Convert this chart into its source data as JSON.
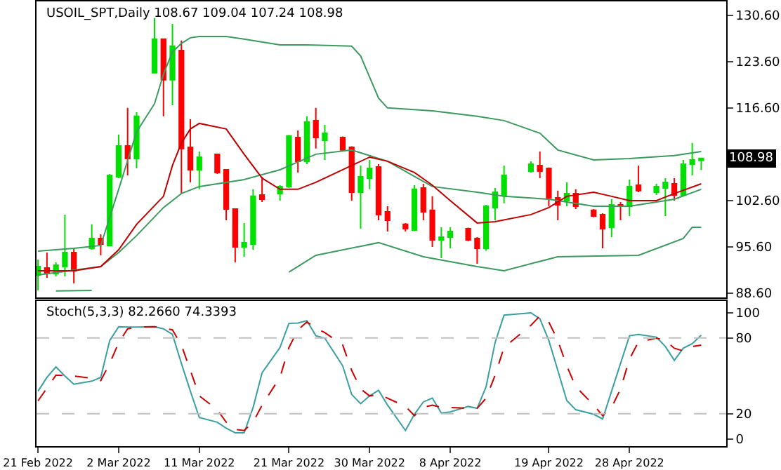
{
  "chart_data": [
    {
      "type": "candlestick",
      "title": "USOIL_SPT,Daily 108.67 109.04 107.24 108.98",
      "x": [
        "2022-02-21",
        "2022-02-22",
        "2022-02-23",
        "2022-02-24",
        "2022-02-25",
        "2022-02-27",
        "2022-02-28",
        "2022-03-01",
        "2022-03-02",
        "2022-03-03",
        "2022-03-04",
        "2022-03-06",
        "2022-03-07",
        "2022-03-08",
        "2022-03-09",
        "2022-03-10",
        "2022-03-11",
        "2022-03-13",
        "2022-03-14",
        "2022-03-15",
        "2022-03-16",
        "2022-03-17",
        "2022-03-18",
        "2022-03-20",
        "2022-03-21",
        "2022-03-22",
        "2022-03-23",
        "2022-03-24",
        "2022-03-25",
        "2022-03-27",
        "2022-03-28",
        "2022-03-29",
        "2022-03-30",
        "2022-03-31",
        "2022-04-01",
        "2022-04-03",
        "2022-04-04",
        "2022-04-05",
        "2022-04-06",
        "2022-04-07",
        "2022-04-08",
        "2022-04-10",
        "2022-04-11",
        "2022-04-12",
        "2022-04-13",
        "2022-04-14",
        "2022-04-17",
        "2022-04-18",
        "2022-04-19",
        "2022-04-20",
        "2022-04-21",
        "2022-04-22",
        "2022-04-24",
        "2022-04-25",
        "2022-04-26",
        "2022-04-27",
        "2022-04-28",
        "2022-04-29",
        "2022-05-01",
        "2022-05-02",
        "2022-05-03",
        "2022-05-04",
        "2022-05-05",
        "2022-05-06"
      ],
      "ohlc": [
        [
          91.36,
          93.69,
          89.02,
          92.63
        ],
        [
          92.42,
          94.75,
          90.93,
          91.57
        ],
        [
          91.57,
          93.27,
          91.15,
          92.84
        ],
        [
          92.63,
          100.48,
          91.15,
          94.75
        ],
        [
          94.75,
          95.39,
          90.08,
          92.0
        ],
        [
          95.39,
          99.0,
          95.17,
          96.87
        ],
        [
          96.87,
          97.51,
          94.33,
          96.02
        ],
        [
          95.81,
          106.63,
          95.81,
          106.42
        ],
        [
          106.2,
          112.57,
          105.99,
          110.87
        ],
        [
          110.87,
          116.6,
          106.42,
          108.96
        ],
        [
          108.96,
          115.96,
          107.48,
          115.33
        ],
        [
          121.9,
          130.17,
          121.9,
          126.99
        ],
        [
          126.99,
          126.99,
          115.33,
          120.84
        ],
        [
          120.84,
          129.32,
          117.02,
          125.93
        ],
        [
          125.29,
          126.78,
          103.66,
          110.45
        ],
        [
          110.66,
          114.9,
          105.36,
          107.26
        ],
        [
          107.26,
          110.02,
          104.3,
          109.17
        ],
        [
          109.6,
          109.6,
          106.63,
          106.84
        ],
        [
          107.26,
          107.26,
          99.63,
          101.33
        ],
        [
          101.33,
          101.33,
          93.27,
          95.6
        ],
        [
          95.6,
          99.21,
          94.11,
          96.24
        ],
        [
          96.02,
          104.3,
          95.17,
          103.24
        ],
        [
          103.45,
          106.2,
          102.39,
          102.81
        ],
        [
          103.66,
          104.93,
          102.6,
          104.72
        ],
        [
          104.72,
          112.5,
          104.5,
          112.36
        ],
        [
          112.14,
          113.2,
          106.84,
          108.54
        ],
        [
          108.54,
          115.33,
          108.11,
          114.48
        ],
        [
          114.69,
          116.6,
          110.45,
          112.14
        ],
        [
          111.72,
          114.05,
          108.75,
          112.78
        ],
        [
          112.14,
          112.3,
          110.02,
          110.24
        ],
        [
          110.66,
          110.8,
          102.6,
          103.87
        ],
        [
          103.87,
          107.9,
          98.36,
          106.2
        ],
        [
          105.99,
          108.75,
          104.3,
          107.48
        ],
        [
          107.69,
          108.11,
          99.63,
          100.48
        ],
        [
          100.9,
          101.75,
          97.93,
          99.63
        ],
        [
          99.0,
          99.21,
          97.93,
          98.36
        ],
        [
          98.15,
          104.93,
          98.0,
          104.3
        ],
        [
          104.51,
          105.14,
          99.63,
          100.9
        ],
        [
          101.12,
          103.24,
          95.6,
          96.66
        ],
        [
          96.66,
          98.57,
          93.9,
          97.09
        ],
        [
          97.09,
          98.57,
          95.39,
          97.93
        ],
        [
          98.36,
          98.5,
          96.45,
          96.66
        ],
        [
          96.87,
          97.09,
          93.05,
          95.39
        ],
        [
          95.39,
          101.96,
          95.0,
          101.75
        ],
        [
          101.54,
          104.51,
          99.63,
          103.87
        ],
        [
          103.45,
          107.9,
          102.18,
          106.42
        ],
        [
          107.05,
          108.54,
          106.84,
          108.11
        ],
        [
          107.9,
          110.02,
          105.99,
          107.05
        ],
        [
          107.48,
          107.6,
          101.75,
          103.02
        ],
        [
          103.02,
          104.09,
          99.63,
          101.96
        ],
        [
          102.6,
          105.36,
          101.75,
          103.66
        ],
        [
          103.66,
          104.3,
          101.33,
          101.75
        ],
        [
          101.12,
          101.33,
          100.06,
          100.27
        ],
        [
          100.48,
          100.69,
          95.39,
          98.36
        ],
        [
          98.57,
          102.81,
          97.09,
          101.96
        ],
        [
          101.96,
          102.39,
          99.63,
          101.75
        ],
        [
          101.75,
          105.78,
          100.27,
          104.72
        ],
        [
          104.93,
          107.9,
          103.87,
          104.09
        ],
        [
          103.87,
          105.14,
          103.45,
          104.72
        ],
        [
          104.51,
          105.99,
          100.27,
          105.36
        ],
        [
          105.14,
          105.99,
          102.6,
          103.45
        ],
        [
          103.45,
          108.75,
          103.24,
          108.11
        ],
        [
          108.11,
          111.3,
          106.42,
          108.75
        ],
        [
          108.67,
          109.04,
          107.24,
          108.98
        ]
      ],
      "colors": [
        "#00e000",
        "#ff0000",
        "#00e000",
        "#00e000",
        "#ff0000",
        "#00e000",
        "#ff0000",
        "#00e000",
        "#00e000",
        "#ff0000",
        "#00e000",
        "#00e000",
        "#ff0000",
        "#00e000",
        "#ff0000",
        "#ff0000",
        "#00e000",
        "#ff0000",
        "#ff0000",
        "#ff0000",
        "#00e000",
        "#00e000",
        "#ff0000",
        "#00e000",
        "#00e000",
        "#ff0000",
        "#00e000",
        "#ff0000",
        "#00e000",
        "#ff0000",
        "#ff0000",
        "#00e000",
        "#00e000",
        "#ff0000",
        "#ff0000",
        "#ff0000",
        "#00e000",
        "#ff0000",
        "#ff0000",
        "#00e000",
        "#00e000",
        "#ff0000",
        "#ff0000",
        "#00e000",
        "#00e000",
        "#00e000",
        "#00e000",
        "#ff0000",
        "#ff0000",
        "#ff0000",
        "#00e000",
        "#ff0000",
        "#ff0000",
        "#ff0000",
        "#00e000",
        "#ff0000",
        "#00e000",
        "#ff0000",
        "#00e000",
        "#00e000",
        "#ff0000",
        "#00e000",
        "#00e000",
        "#00e000"
      ],
      "series": [
        {
          "type": "line",
          "color": "#3c9a5f",
          "x": [
            "2022-02-21",
            "2022-02-25",
            "2022-02-28",
            "2022-03-02",
            "2022-03-04",
            "2022-03-06",
            "2022-03-07",
            "2022-03-08",
            "2022-03-09",
            "2022-03-10",
            "2022-03-11",
            "2022-03-14",
            "2022-03-16",
            "2022-03-20",
            "2022-03-23",
            "2022-03-28",
            "2022-03-29",
            "2022-03-30",
            "2022-03-31",
            "2022-04-01",
            "2022-04-06",
            "2022-04-11",
            "2022-04-14",
            "2022-04-18",
            "2022-04-20",
            "2022-04-24",
            "2022-04-28",
            "2022-05-03",
            "2022-05-06"
          ],
          "values": [
            94.96,
            95.39,
            95.81,
            104.3,
            112.99,
            117.23,
            121.69,
            125.08,
            126.35,
            127.2,
            127.41,
            127.41,
            126.99,
            126.14,
            126.14,
            125.93,
            124.45,
            121.26,
            118.08,
            116.6,
            116.17,
            115.33,
            114.69,
            112.78,
            110.24,
            108.75,
            108.96,
            109.39,
            110.02
          ]
        },
        {
          "type": "line",
          "color": "#3c9a5f",
          "x": [
            "2022-02-21",
            "2022-02-28",
            "2022-03-02",
            "2022-03-04",
            "2022-03-07",
            "2022-03-09",
            "2022-03-11",
            "2022-03-16",
            "2022-03-20",
            "2022-03-24",
            "2022-03-28",
            "2022-04-01",
            "2022-04-06",
            "2022-04-11",
            "2022-04-14",
            "2022-04-19",
            "2022-04-24",
            "2022-04-28",
            "2022-05-03",
            "2022-05-06"
          ],
          "values": [
            91.36,
            92.63,
            94.75,
            97.3,
            101.54,
            103.66,
            104.72,
            105.78,
            107.26,
            109.6,
            110.24,
            108.54,
            104.72,
            103.87,
            103.24,
            102.81,
            101.75,
            101.75,
            102.81,
            104.3
          ]
        },
        {
          "type": "line",
          "color": "#3c9a5f",
          "x": [
            "2022-02-23",
            "2022-02-27",
            "2022-02-28",
            "2022-03-21",
            "2022-03-24",
            "2022-03-31",
            "2022-04-05",
            "2022-04-11",
            "2022-04-14",
            "2022-04-20",
            "2022-04-29",
            "2022-05-04",
            "2022-05-05",
            "2022-05-06"
          ],
          "values": [
            88.93,
            89.02,
            null,
            91.78,
            94.33,
            96.24,
            94.11,
            92.63,
            92.0,
            94.11,
            94.33,
            96.87,
            98.57,
            98.57
          ]
        },
        {
          "type": "line",
          "color": "#c00000",
          "x": [
            "2022-02-21",
            "2022-02-25",
            "2022-02-28",
            "2022-03-02",
            "2022-03-04",
            "2022-03-07",
            "2022-03-08",
            "2022-03-09",
            "2022-03-10",
            "2022-03-11",
            "2022-03-14",
            "2022-03-16",
            "2022-03-18",
            "2022-03-20",
            "2022-03-22",
            "2022-03-24",
            "2022-03-28",
            "2022-03-30",
            "2022-04-01",
            "2022-04-04",
            "2022-04-06",
            "2022-04-08",
            "2022-04-11",
            "2022-04-13",
            "2022-04-17",
            "2022-04-19",
            "2022-04-21",
            "2022-04-24",
            "2022-04-26",
            "2022-04-28",
            "2022-05-01",
            "2022-05-03",
            "2022-05-06"
          ],
          "values": [
            92.0,
            92.0,
            92.63,
            95.17,
            99.0,
            103.24,
            107.9,
            111.3,
            113.42,
            114.26,
            113.42,
            109.6,
            105.99,
            104.3,
            104.3,
            105.36,
            107.9,
            109.17,
            108.54,
            106.84,
            104.93,
            102.6,
            99.21,
            99.42,
            100.48,
            101.54,
            103.24,
            103.87,
            103.24,
            102.6,
            102.6,
            103.66,
            105.14
          ]
        }
      ],
      "xlim": [
        "2022-02-20T20:00",
        "2022-05-08T19:00"
      ],
      "ylim": [
        88.0,
        132.7
      ],
      "yticks": [
        {
          "value": 130.6,
          "label": "130.60"
        },
        {
          "value": 123.6,
          "label": "123.60"
        },
        {
          "value": 116.6,
          "label": "116.60"
        },
        {
          "value": 102.6,
          "label": "102.60"
        },
        {
          "value": 95.6,
          "label": "95.60"
        },
        {
          "value": 88.6,
          "label": "88.60"
        }
      ],
      "tick_labels": "y",
      "annotations": [
        "108.98"
      ]
    },
    {
      "type": "line",
      "title": "Stoch(5,3,3) 82.2660 74.3393",
      "x": [
        "2022-02-21",
        "2022-02-22",
        "2022-02-23",
        "2022-02-24",
        "2022-02-25",
        "2022-02-27",
        "2022-02-28",
        "2022-03-01",
        "2022-03-02",
        "2022-03-03",
        "2022-03-04",
        "2022-03-06",
        "2022-03-07",
        "2022-03-08",
        "2022-03-09",
        "2022-03-10",
        "2022-03-11",
        "2022-03-13",
        "2022-03-14",
        "2022-03-15",
        "2022-03-16",
        "2022-03-17",
        "2022-03-18",
        "2022-03-20",
        "2022-03-21",
        "2022-03-22",
        "2022-03-23",
        "2022-03-24",
        "2022-03-25",
        "2022-03-27",
        "2022-03-28",
        "2022-03-29",
        "2022-03-30",
        "2022-03-31",
        "2022-04-01",
        "2022-04-03",
        "2022-04-04",
        "2022-04-05",
        "2022-04-06",
        "2022-04-07",
        "2022-04-08",
        "2022-04-10",
        "2022-04-11",
        "2022-04-12",
        "2022-04-13",
        "2022-04-14",
        "2022-04-17",
        "2022-04-18",
        "2022-04-19",
        "2022-04-20",
        "2022-04-21",
        "2022-04-22",
        "2022-04-24",
        "2022-04-25",
        "2022-04-26",
        "2022-04-27",
        "2022-04-28",
        "2022-04-29",
        "2022-05-01",
        "2022-05-02",
        "2022-05-03",
        "2022-05-04",
        "2022-05-05",
        "2022-05-06"
      ],
      "series": [
        {
          "color": "#3a9fa0",
          "line_style": "solid",
          "values": [
            37.8,
            48.8,
            57.1,
            49.9,
            43.3,
            45.8,
            48.8,
            78.0,
            89.0,
            88.7,
            88.7,
            89.0,
            87.3,
            82.9,
            59.8,
            37.8,
            16.9,
            13.2,
            8.5,
            4.8,
            4.8,
            24.9,
            52.4,
            72.5,
            91.6,
            91.9,
            93.8,
            81.8,
            79.9,
            57.9,
            35.2,
            27.9,
            34.1,
            38.5,
            26.8,
            6.6,
            19.5,
            29.3,
            32.3,
            20.5,
            21.3,
            25.7,
            24.2,
            41.4,
            76.3,
            98.2,
            100,
            95.3,
            78.0,
            54.3,
            30.4,
            23.1,
            19.5,
            15.8,
            37.8,
            59.8,
            81.8,
            82.9,
            80.7,
            73.3,
            62.3,
            71.9,
            75.5,
            82.266
          ]
        },
        {
          "color": "#cc0000",
          "line_style": "dashed",
          "values": [
            30.1,
            40.3,
            50.5,
            50.2,
            49.9,
            48.1,
            46.2,
            59.8,
            76.3,
            87.3,
            88.7,
            89.0,
            88.0,
            86.5,
            74.4,
            54.3,
            34.1,
            23.1,
            13.2,
            7.4,
            6.6,
            13.2,
            26.8,
            48.8,
            72.5,
            86.5,
            92.7,
            87.9,
            84.3,
            74.4,
            54.3,
            39.6,
            34.1,
            35.2,
            32.3,
            25.7,
            18.4,
            24.9,
            26.8,
            24.9,
            24.9,
            24.2,
            24.2,
            32.3,
            50.5,
            72.5,
            90.1,
            97.5,
            92.7,
            78.0,
            57.9,
            41.4,
            26.8,
            18.4,
            24.9,
            39.6,
            63.4,
            76.9,
            79.9,
            78.0,
            71.9,
            69.7,
            73.3,
            74.3393
          ]
        }
      ],
      "xlim": [
        "2022-02-20T20:00",
        "2022-05-08T19:00"
      ],
      "xticks": [
        {
          "value": "2022-02-21",
          "label": "21 Feb 2022"
        },
        {
          "value": "2022-03-02",
          "label": "2 Mar 2022"
        },
        {
          "value": "2022-03-11",
          "label": "11 Mar 2022"
        },
        {
          "value": "2022-03-21",
          "label": "21 Mar 2022"
        },
        {
          "value": "2022-03-30",
          "label": "30 Mar 2022"
        },
        {
          "value": "2022-04-08",
          "label": "8 Apr 2022"
        },
        {
          "value": "2022-04-19",
          "label": "19 Apr 2022"
        },
        {
          "value": "2022-04-28",
          "label": "28 Apr 2022"
        }
      ],
      "ylim": [
        -5.8,
        109.6
      ],
      "yticks": [
        100,
        80,
        20,
        0
      ],
      "ref_lines": [
        {
          "axis": "y",
          "value": 80,
          "color": "#c0c0c0",
          "line_style": "dashed"
        },
        {
          "axis": "y",
          "value": 20,
          "color": "#c0c0c0",
          "line_style": "dashed"
        }
      ]
    }
  ]
}
